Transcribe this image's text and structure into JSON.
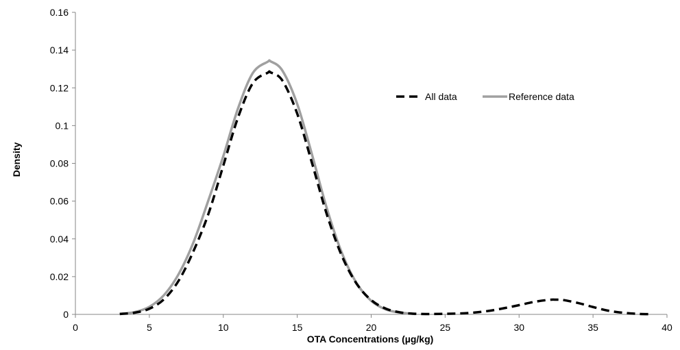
{
  "chart_data": {
    "type": "line",
    "title": "",
    "xlabel": "OTA Concentrations (µg/kg)",
    "ylabel": "Density",
    "xlim": [
      0,
      40
    ],
    "ylim": [
      0,
      0.16
    ],
    "x_ticks": [
      0,
      5,
      10,
      15,
      20,
      25,
      30,
      35,
      40
    ],
    "y_ticks": [
      0,
      0.02,
      0.04,
      0.06,
      0.08,
      0.1,
      0.12,
      0.14,
      0.16
    ],
    "x_tick_labels": [
      "0",
      "5",
      "10",
      "15",
      "20",
      "25",
      "30",
      "35",
      "40"
    ],
    "y_tick_labels": [
      "0",
      "0.02",
      "0.04",
      "0.06",
      "0.08",
      "0.1",
      "0.12",
      "0.14",
      "0.16"
    ],
    "grid": false,
    "legend_position": "top-right",
    "series": [
      {
        "name": "All data",
        "style": "dashed",
        "color": "#000000",
        "x": [
          3.0,
          4.0,
          5.0,
          6.0,
          7.0,
          8.0,
          9.0,
          10.0,
          11.0,
          12.0,
          13.0,
          13.2,
          14.0,
          15.0,
          16.0,
          17.0,
          18.0,
          19.0,
          20.0,
          21.0,
          22.0,
          23.0,
          24.0,
          25.0,
          26.0,
          27.0,
          28.0,
          29.0,
          30.0,
          31.0,
          32.0,
          32.5,
          33.0,
          34.0,
          35.0,
          36.0,
          37.0,
          38.0,
          39.0
        ],
        "y": [
          0.0002,
          0.0009,
          0.003,
          0.0081,
          0.0181,
          0.0338,
          0.0534,
          0.0788,
          0.1044,
          0.1225,
          0.128,
          0.1282,
          0.1238,
          0.1063,
          0.0801,
          0.053,
          0.0313,
          0.0164,
          0.0076,
          0.003,
          0.001,
          0.0003,
          0.0002,
          0.0003,
          0.0005,
          0.001,
          0.0019,
          0.0033,
          0.0049,
          0.0066,
          0.0077,
          0.0078,
          0.0076,
          0.006,
          0.0039,
          0.002,
          0.0009,
          0.0003,
          0.0001
        ]
      },
      {
        "name": "Reference data",
        "style": "solid",
        "color": "#a0a0a0",
        "x": [
          3.0,
          4.0,
          5.0,
          6.0,
          7.0,
          8.0,
          9.0,
          10.0,
          11.0,
          12.0,
          13.0,
          13.2,
          14.0,
          15.0,
          16.0,
          17.0,
          18.0,
          19.0,
          20.0,
          21.0,
          22.0,
          23.0
        ],
        "y": [
          0.0003,
          0.0012,
          0.004,
          0.0103,
          0.0216,
          0.0385,
          0.0606,
          0.0838,
          0.1092,
          0.1279,
          0.1338,
          0.134,
          0.1291,
          0.1114,
          0.0846,
          0.0562,
          0.0329,
          0.0167,
          0.0072,
          0.0026,
          0.0009,
          0.0002
        ]
      }
    ]
  }
}
